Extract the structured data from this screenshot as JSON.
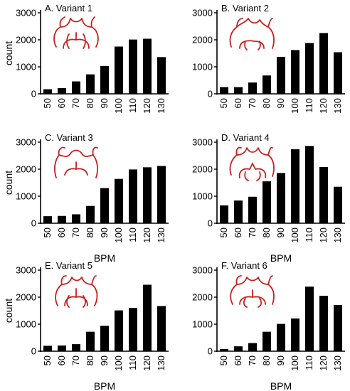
{
  "chart_data": [
    {
      "type": "bar",
      "title": "A. Variant 1",
      "xlabel": "",
      "ylabel": "count",
      "categories": [
        "50",
        "60",
        "70",
        "80",
        "90",
        "100",
        "110",
        "120",
        "130"
      ],
      "values": [
        170,
        210,
        460,
        720,
        1030,
        1750,
        2010,
        2040,
        1360
      ],
      "ylim": [
        0,
        3000
      ],
      "yticks": [
        "0",
        "1000",
        "2000",
        "3000"
      ]
    },
    {
      "type": "bar",
      "title": "B. Variant 2",
      "xlabel": "",
      "ylabel": "",
      "categories": [
        "50",
        "60",
        "70",
        "80",
        "90",
        "100",
        "110",
        "120",
        "130"
      ],
      "values": [
        250,
        250,
        420,
        680,
        1370,
        1620,
        1880,
        2250,
        1540
      ],
      "ylim": [
        0,
        3000
      ],
      "yticks": [
        "0",
        "1000",
        "2000",
        "3000"
      ]
    },
    {
      "type": "bar",
      "title": "C. Variant 3",
      "xlabel": "BPM",
      "ylabel": "count",
      "categories": [
        "50",
        "60",
        "70",
        "80",
        "90",
        "100",
        "110",
        "120",
        "130"
      ],
      "values": [
        260,
        270,
        330,
        640,
        1300,
        1640,
        1990,
        2070,
        2120
      ],
      "ylim": [
        0,
        3000
      ],
      "yticks": [
        "0",
        "1000",
        "2000",
        "3000"
      ]
    },
    {
      "type": "bar",
      "title": "D. Variant 4",
      "xlabel": "BPM",
      "ylabel": "",
      "categories": [
        "50",
        "60",
        "70",
        "80",
        "90",
        "100",
        "110",
        "120",
        "130"
      ],
      "values": [
        660,
        840,
        980,
        1550,
        1860,
        2740,
        2860,
        2080,
        1350
      ],
      "ylim": [
        0,
        3000
      ],
      "yticks": [
        "0",
        "1000",
        "2000",
        "3000"
      ]
    },
    {
      "type": "bar",
      "title": "E. Variant 5",
      "xlabel": "BPM",
      "ylabel": "count",
      "categories": [
        "50",
        "60",
        "70",
        "80",
        "90",
        "100",
        "110",
        "120",
        "130"
      ],
      "values": [
        200,
        210,
        260,
        720,
        940,
        1510,
        1600,
        2460,
        1670
      ],
      "ylim": [
        0,
        3000
      ],
      "yticks": [
        "0",
        "1000",
        "2000",
        "3000"
      ]
    },
    {
      "type": "bar",
      "title": "F. Variant 6",
      "xlabel": "BPM",
      "ylabel": "",
      "categories": [
        "50",
        "60",
        "70",
        "80",
        "90",
        "100",
        "110",
        "120",
        "130"
      ],
      "values": [
        80,
        180,
        300,
        720,
        1010,
        1210,
        2390,
        2050,
        1710
      ],
      "ylim": [
        0,
        3000
      ],
      "yticks": [
        "0",
        "1000",
        "2000",
        "3000"
      ]
    }
  ],
  "style": {
    "bar_color": "#000000",
    "axis_color": "#000000",
    "icon_color": "#c8201e"
  },
  "icons": [
    "vessel-variant-1-icon",
    "vessel-variant-2-icon",
    "vessel-variant-3-icon",
    "vessel-variant-4-icon",
    "vessel-variant-5-icon",
    "vessel-variant-6-icon"
  ]
}
